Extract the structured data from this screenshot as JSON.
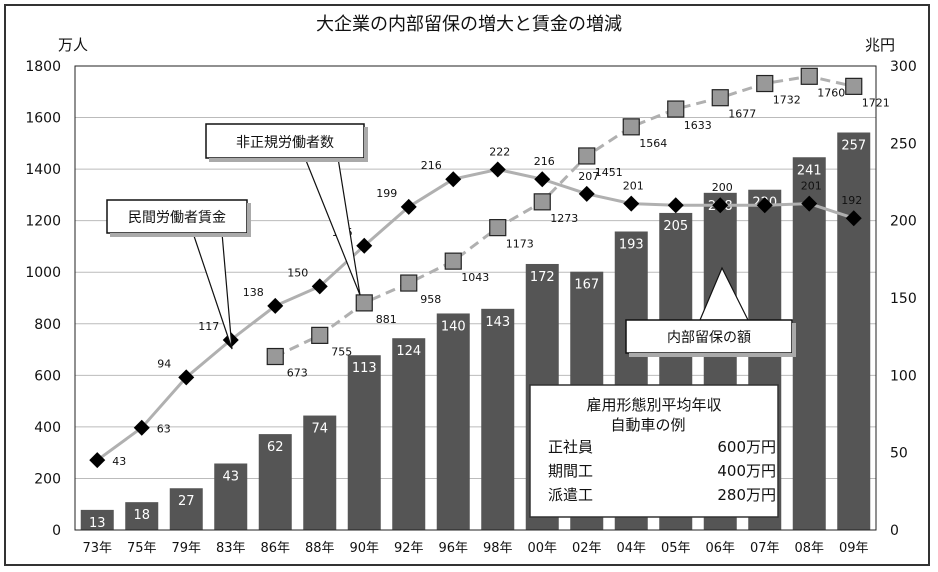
{
  "chart_data": {
    "type": "bar+line",
    "title": "大企業の内部留保の増大と賃金の増減",
    "left_axis_unit": "万人",
    "right_axis_unit": "兆円",
    "left_ylim": [
      0,
      1800
    ],
    "left_ticks": [
      "0",
      "200",
      "400",
      "600",
      "800",
      "1000",
      "1200",
      "1400",
      "1600",
      "1800"
    ],
    "right_ylim": [
      0,
      300
    ],
    "right_ticks": [
      "0",
      "50",
      "100",
      "150",
      "200",
      "250",
      "300"
    ],
    "categories": [
      "73年",
      "75年",
      "79年",
      "83年",
      "86年",
      "88年",
      "90年",
      "92年",
      "96年",
      "98年",
      "00年",
      "02年",
      "04年",
      "05年",
      "06年",
      "07年",
      "08年",
      "09年"
    ],
    "series": [
      {
        "name": "内部留保の額",
        "kind": "bar",
        "axis": "right",
        "values": [
          13,
          18,
          27,
          43,
          62,
          74,
          113,
          124,
          140,
          143,
          172,
          167,
          193,
          205,
          218,
          220,
          241,
          257
        ],
        "labels": [
          "13",
          "18",
          "27",
          "43",
          "62",
          "74",
          "113",
          "124",
          "140",
          "143",
          "172",
          "167",
          "193",
          "205",
          "218",
          "220",
          "241",
          "257"
        ]
      },
      {
        "name": "民間労働者賃金",
        "kind": "line",
        "axis": "left",
        "values": [
          43,
          63,
          94,
          117,
          138,
          150,
          175,
          199,
          216,
          222,
          216,
          207,
          201,
          200,
          200,
          200,
          201,
          192
        ],
        "labels": [
          "43",
          "63",
          "94",
          "117",
          "138",
          "150",
          "175",
          "199",
          "216",
          "222",
          "216",
          "207",
          "201",
          "",
          "200",
          "",
          "201",
          "192"
        ]
      },
      {
        "name": "非正規労働者数",
        "kind": "line",
        "axis": "left",
        "values": [
          null,
          null,
          null,
          null,
          673,
          755,
          881,
          958,
          1043,
          1173,
          1273,
          1451,
          1564,
          1633,
          1677,
          1732,
          1760,
          1721
        ],
        "labels": [
          "",
          "",
          "",
          "",
          "673",
          "755",
          "881",
          "958",
          "1043",
          "1173",
          "1273",
          "1451",
          "1564",
          "1633",
          "1677",
          "1732",
          "1760",
          "1721"
        ]
      }
    ],
    "callouts": [
      "民間労働者賃金",
      "非正規労働者数",
      "内部留保の額"
    ],
    "infobox": {
      "title1": "雇用形態別平均年収",
      "title2": "自動車の例",
      "rows": [
        {
          "label": "正社員",
          "value": "600万円"
        },
        {
          "label": "期間工",
          "value": "400万円"
        },
        {
          "label": "派遣工",
          "value": "280万円"
        }
      ]
    },
    "colors": {
      "bar": "#555555",
      "wage_line": "#b0b0b0",
      "wage_marker": "#000000",
      "nonreg_line": "#b0b0b0",
      "nonreg_marker": "#999999"
    }
  }
}
